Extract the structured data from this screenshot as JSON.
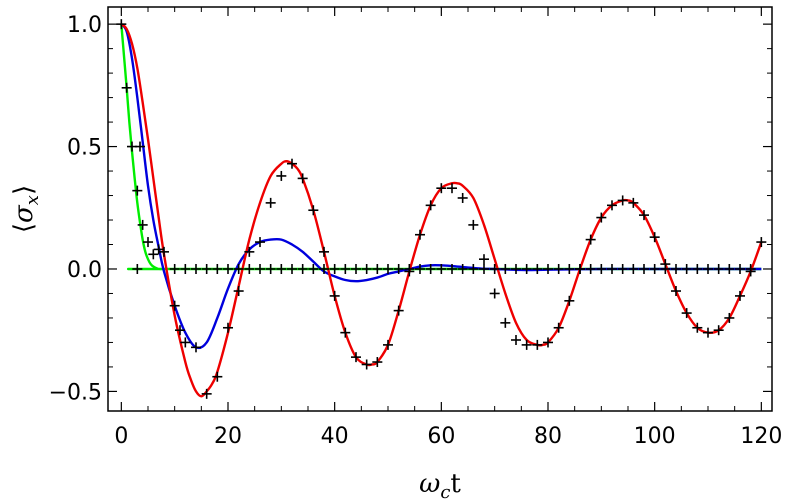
{
  "chart_data": {
    "type": "line",
    "xlabel": "ω꜀t",
    "xlabel_main": "ω",
    "xlabel_sub": "c",
    "xlabel_tail": "t",
    "ylabel": "⟨σx⟩",
    "ylabel_left": "⟨",
    "ylabel_main": "σ",
    "ylabel_sub": "x",
    "ylabel_right": "⟩",
    "xlim": [
      -2.5,
      122
    ],
    "ylim": [
      -0.58,
      1.07
    ],
    "xticks": [
      0,
      20,
      40,
      60,
      80,
      100,
      120
    ],
    "xtick_labels": [
      "0",
      "20",
      "40",
      "60",
      "80",
      "100",
      "120"
    ],
    "yticks": [
      1.0,
      0.5,
      0.0,
      -0.5
    ],
    "ytick_labels": [
      "1.0",
      "0.5",
      "0.0",
      "−0.5"
    ],
    "grid": false,
    "series": [
      {
        "color": "#00ee00",
        "style": "line",
        "x": [
          0,
          0.5,
          1,
          1.5,
          2,
          2.5,
          3,
          3.5,
          4,
          4.5,
          5,
          5.5,
          6,
          7,
          8,
          10,
          120
        ],
        "values": [
          1.0,
          0.87,
          0.74,
          0.6,
          0.48,
          0.37,
          0.27,
          0.19,
          0.12,
          0.07,
          0.04,
          0.02,
          0.01,
          0.0,
          0.0,
          0.0,
          0.0
        ]
      },
      {
        "color": "#0000dd",
        "style": "line",
        "x": [
          0,
          1,
          2,
          3,
          4,
          5,
          6,
          7,
          8,
          10,
          12,
          14,
          16,
          18,
          20,
          22,
          24,
          26,
          28,
          30,
          32,
          34,
          36,
          38,
          40,
          42,
          44,
          46,
          48,
          50,
          52,
          54,
          56,
          58,
          60,
          62,
          64,
          66,
          68,
          70,
          75,
          80,
          90,
          100,
          110,
          120
        ],
        "values": [
          1.0,
          0.97,
          0.86,
          0.7,
          0.52,
          0.34,
          0.2,
          0.09,
          -0.01,
          -0.15,
          -0.26,
          -0.32,
          -0.3,
          -0.2,
          -0.08,
          0.02,
          0.08,
          0.11,
          0.12,
          0.12,
          0.1,
          0.07,
          0.03,
          -0.01,
          -0.03,
          -0.045,
          -0.05,
          -0.045,
          -0.035,
          -0.02,
          -0.01,
          0.0,
          0.01,
          0.015,
          0.015,
          0.012,
          0.008,
          0.004,
          0.001,
          0.0,
          -0.004,
          -0.003,
          0.0,
          0.0,
          0.0,
          0.0
        ]
      },
      {
        "color": "#ee0000",
        "style": "line",
        "x": [
          0,
          1,
          2,
          3,
          4,
          5,
          6,
          7,
          8,
          10,
          12,
          13,
          14,
          15,
          16,
          17,
          18,
          20,
          22,
          24,
          26,
          28,
          30,
          31,
          32,
          33,
          34,
          36,
          38,
          40,
          42,
          44,
          46,
          47,
          48,
          50,
          52,
          54,
          56,
          58,
          60,
          62,
          63,
          64,
          66,
          68,
          70,
          72,
          74,
          76,
          78,
          79,
          80,
          82,
          84,
          86,
          88,
          90,
          92,
          94,
          95,
          96,
          98,
          100,
          102,
          104,
          106,
          108,
          110,
          112,
          114,
          116,
          118,
          120
        ],
        "values": [
          1.0,
          0.98,
          0.92,
          0.82,
          0.68,
          0.53,
          0.37,
          0.21,
          0.06,
          -0.19,
          -0.38,
          -0.45,
          -0.5,
          -0.52,
          -0.5,
          -0.47,
          -0.42,
          -0.26,
          -0.07,
          0.12,
          0.27,
          0.38,
          0.43,
          0.44,
          0.43,
          0.41,
          0.37,
          0.24,
          0.07,
          -0.11,
          -0.26,
          -0.36,
          -0.39,
          -0.39,
          -0.38,
          -0.31,
          -0.17,
          -0.01,
          0.14,
          0.26,
          0.33,
          0.35,
          0.35,
          0.34,
          0.29,
          0.18,
          0.04,
          -0.1,
          -0.22,
          -0.29,
          -0.31,
          -0.31,
          -0.3,
          -0.24,
          -0.13,
          0.0,
          0.12,
          0.21,
          0.26,
          0.28,
          0.28,
          0.27,
          0.22,
          0.13,
          0.02,
          -0.09,
          -0.18,
          -0.24,
          -0.26,
          -0.25,
          -0.2,
          -0.11,
          -0.01,
          0.11
        ]
      },
      {
        "color": "#000000",
        "style": "markers-plus",
        "x": [
          0,
          1,
          2,
          3,
          3.5,
          4,
          5,
          6,
          7,
          8,
          10,
          11,
          12,
          14,
          16,
          18,
          20,
          22,
          24,
          26,
          28,
          30,
          32,
          34,
          36,
          38,
          40,
          42,
          44,
          46,
          48,
          50,
          52,
          54,
          56,
          58,
          60,
          62,
          64,
          66,
          68,
          70,
          72,
          74,
          76,
          78,
          80,
          82,
          84,
          86,
          88,
          90,
          92,
          94,
          96,
          98,
          100,
          102,
          104,
          106,
          108,
          110,
          112,
          114,
          116,
          118,
          120,
          3,
          10,
          12,
          14,
          16,
          18,
          20,
          22,
          24,
          26,
          28,
          30,
          32,
          34,
          36,
          38,
          40,
          42,
          44,
          46,
          48,
          50,
          52,
          54,
          56,
          58,
          60,
          62,
          64,
          66,
          68,
          70,
          72,
          74,
          76,
          78,
          80,
          82,
          84,
          86,
          88,
          90,
          92,
          94,
          96,
          98,
          100,
          102,
          104,
          106,
          108,
          110,
          112,
          114,
          116,
          118
        ],
        "values": [
          1.0,
          0.74,
          0.5,
          0.32,
          0.5,
          0.18,
          0.11,
          0.06,
          0.08,
          0.07,
          -0.15,
          -0.25,
          -0.3,
          -0.32,
          -0.51,
          -0.44,
          -0.24,
          -0.09,
          0.07,
          0.11,
          0.27,
          0.38,
          0.43,
          0.37,
          0.24,
          0.07,
          -0.11,
          -0.26,
          -0.36,
          -0.39,
          -0.38,
          -0.31,
          -0.17,
          -0.01,
          0.14,
          0.26,
          0.33,
          0.33,
          0.29,
          0.18,
          0.04,
          -0.1,
          -0.22,
          -0.29,
          -0.31,
          -0.31,
          -0.3,
          -0.24,
          -0.13,
          0.0,
          0.12,
          0.21,
          0.26,
          0.28,
          0.27,
          0.22,
          0.13,
          0.02,
          -0.09,
          -0.18,
          -0.24,
          -0.26,
          -0.25,
          -0.2,
          -0.11,
          -0.01,
          0.11,
          0.0,
          0.0,
          0.0,
          0.0,
          0.0,
          0.0,
          0.0,
          0.0,
          0.0,
          0.0,
          0.0,
          0.0,
          0.0,
          0.0,
          0.0,
          0.0,
          0.0,
          0.0,
          0.0,
          0.0,
          0.0,
          0.0,
          0.0,
          0.0,
          0.0,
          0.0,
          0.0,
          0.0,
          0.0,
          0.0,
          0.0,
          0.0,
          0.0,
          0.0,
          0.0,
          0.0,
          0.0,
          0.0,
          0.0,
          0.0,
          0.0,
          0.0,
          0.0,
          0.0,
          0.0,
          0.0,
          0.0,
          0.0,
          0.0,
          0.0,
          0.0,
          0.0,
          0.0,
          0.0,
          0.0,
          0.0
        ]
      }
    ]
  }
}
